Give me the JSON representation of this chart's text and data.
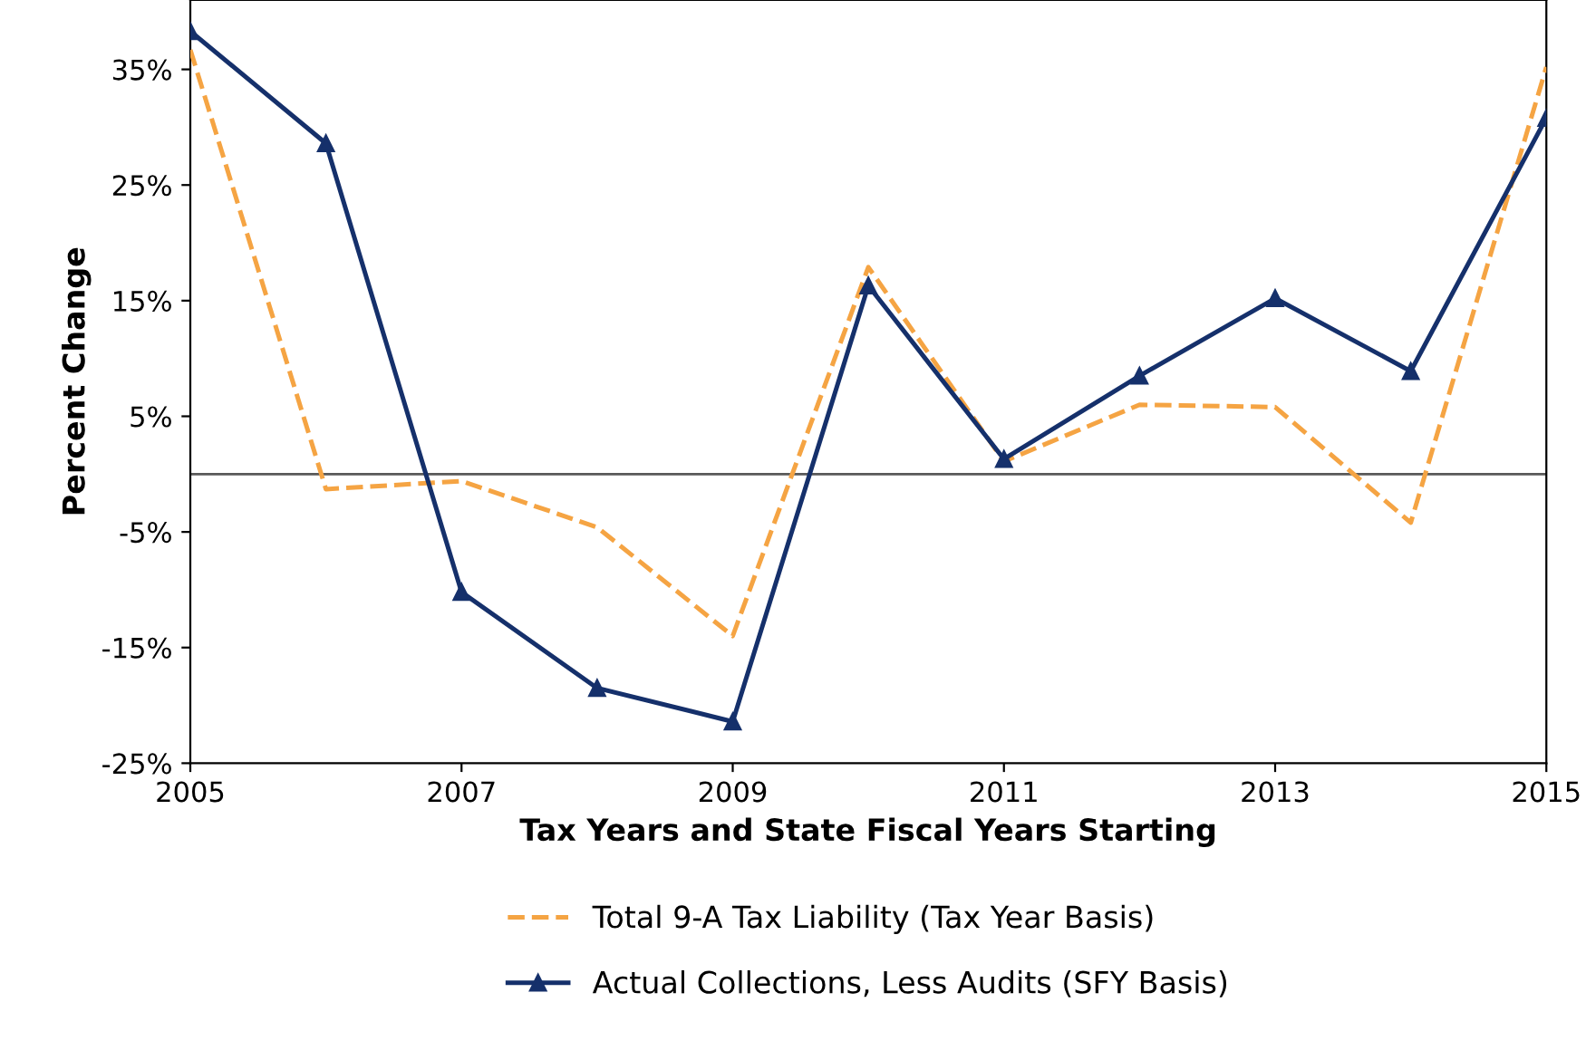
{
  "chart_data": {
    "type": "line",
    "xlabel": "Tax Years and State Fiscal Years Starting",
    "ylabel": "Percent Change",
    "x": [
      2005,
      2006,
      2007,
      2008,
      2009,
      2010,
      2011,
      2012,
      2013,
      2014,
      2015
    ],
    "series": [
      {
        "name": "Total 9-A Tax Liability (Tax Year Basis)",
        "color": "#f5a443",
        "line_style": "dashed",
        "marker": "none",
        "values": [
          36.7,
          -1.3,
          -0.6,
          -4.6,
          -14.0,
          17.9,
          1.1,
          6.0,
          5.8,
          -4.2,
          35.2
        ]
      },
      {
        "name": "Actual Collections, Less Audits (SFY Basis)",
        "color": "#15306b",
        "line_style": "solid",
        "marker": "triangle",
        "values": [
          38.3,
          28.6,
          -10.2,
          -18.5,
          -21.4,
          16.3,
          1.3,
          8.5,
          15.2,
          8.9,
          30.8
        ]
      }
    ],
    "xlim": [
      2005,
      2015
    ],
    "xticks": [
      2005,
      2007,
      2009,
      2011,
      2013,
      2015
    ],
    "ylim": [
      -25,
      41
    ],
    "yticks": [
      {
        "value": -25,
        "label": "-25%"
      },
      {
        "value": -15,
        "label": "-15%"
      },
      {
        "value": -5,
        "label": "-5%"
      },
      {
        "value": 5,
        "label": "5%"
      },
      {
        "value": 15,
        "label": "15%"
      },
      {
        "value": 25,
        "label": "25%"
      },
      {
        "value": 35,
        "label": "35%"
      }
    ],
    "ref_lines": [
      {
        "axis": "y",
        "value": 0,
        "label": null,
        "color": "#595959"
      }
    ],
    "grid": false,
    "legend": "bottom"
  }
}
